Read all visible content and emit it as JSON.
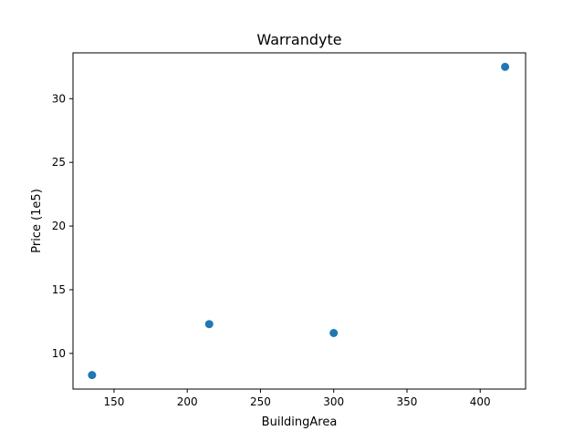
{
  "chart_data": {
    "type": "scatter",
    "title": "Warrandyte",
    "xlabel": "BuildingArea",
    "ylabel": "Price (1e5)",
    "xlim": [
      122,
      431
    ],
    "ylim": [
      7.2,
      33.6
    ],
    "xticks": [
      150,
      200,
      250,
      300,
      350,
      400
    ],
    "yticks": [
      10,
      15,
      20,
      25,
      30
    ],
    "grid": false,
    "series": [
      {
        "color": "#1f77b4",
        "points": [
          {
            "x": 135,
            "y": 8.3
          },
          {
            "x": 215,
            "y": 12.3
          },
          {
            "x": 300,
            "y": 11.6
          },
          {
            "x": 417,
            "y": 32.5
          }
        ]
      }
    ]
  }
}
